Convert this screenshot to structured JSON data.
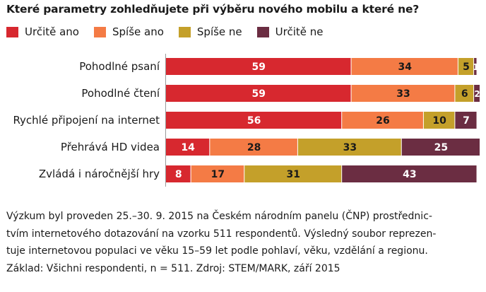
{
  "chart_data": {
    "type": "bar",
    "stacked": true,
    "orientation": "horizontal",
    "title": "Které parametry zohledňujete při výběru nového mobilu a které ne?",
    "xlim": [
      0,
      100
    ],
    "legend_position": "top",
    "categories": [
      "Pohodlné psaní",
      "Pohodlné čtení",
      "Rychlé připojení na internet",
      "Přehrává HD videa",
      "Zvládá i náročnější hry"
    ],
    "series": [
      {
        "name": "Určitě ano",
        "color": "#d7282f",
        "values": [
          59,
          59,
          56,
          14,
          8
        ]
      },
      {
        "name": "Spíše ano",
        "color": "#f47b45",
        "values": [
          34,
          33,
          26,
          28,
          17
        ]
      },
      {
        "name": "Spíše ne",
        "color": "#c4a02a",
        "values": [
          5,
          6,
          10,
          33,
          31
        ]
      },
      {
        "name": "Určitě ne",
        "color": "#6b2d42",
        "values": [
          1,
          2,
          7,
          25,
          43
        ]
      }
    ]
  },
  "notes": {
    "line1": "Výzkum byl proveden 25.–30. 9. 2015 na Českém národním panelu (ČNP) prostřednic-",
    "line2": "tvím internetového dotazování na vzorku 511 respondentů. Výsledný soubor reprezen-",
    "line3": "tuje internetovou populaci ve věku 15–59 let podle pohlaví, věku, vzdělání a regionu.",
    "line4": "Základ: Všichni respondenti, n = 511. Zdroj: STEM/MARK, září 2015"
  }
}
